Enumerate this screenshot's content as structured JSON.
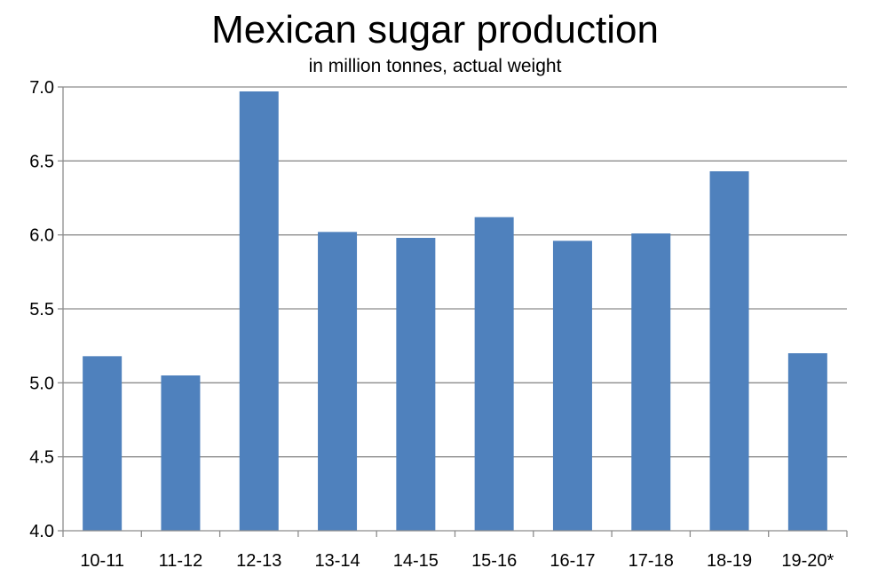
{
  "chart_data": {
    "type": "bar",
    "title": "Mexican sugar production",
    "subtitle": "in million tonnes, actual weight",
    "xlabel": "",
    "ylabel": "",
    "categories": [
      "10-11",
      "11-12",
      "12-13",
      "13-14",
      "14-15",
      "15-16",
      "16-17",
      "17-18",
      "18-19",
      "19-20*"
    ],
    "series": [
      {
        "values": [
          5.18,
          5.05,
          6.97,
          6.02,
          5.98,
          6.12,
          5.96,
          6.01,
          6.43,
          5.2
        ],
        "color": "#4f81bd"
      }
    ],
    "ylim": [
      4.0,
      7.0
    ],
    "yticks": [
      "4.0",
      "4.5",
      "5.0",
      "5.5",
      "6.0",
      "6.5",
      "7.0"
    ],
    "grid": true,
    "legend": "none"
  }
}
